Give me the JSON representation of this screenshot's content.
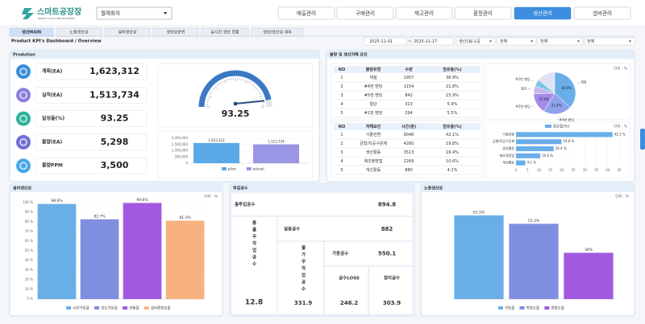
{
  "header": {
    "logo": "스마트공장장",
    "logo_sub": "SMART CLOUD SME PLATFORM",
    "meeting": "월례회의",
    "nav": [
      "매출관리",
      "구매관리",
      "재고관리",
      "품질관리",
      "생산관리",
      "설비관리"
    ]
  },
  "tabs": [
    "생산MAIN",
    "노동생산성",
    "설비생산성",
    "생산성순위",
    "실시간 생산 현황",
    "생산/생산성 세부"
  ],
  "breadcrumb": "Product KPI's Dashboard / Overview",
  "filters": {
    "date_from": "2025-11-01",
    "separator": "~",
    "date_to": "2025-11-17",
    "line": "생산1팀-1공",
    "process": "전체",
    "item": "전체",
    "shift": "전체"
  },
  "production": {
    "title": "Prodution",
    "kpis": [
      {
        "label": "계획(EA)",
        "value": "1,623,312"
      },
      {
        "label": "실적(EA)",
        "value": "1,513,734"
      },
      {
        "label": "달성율(%)",
        "value": "93.25"
      },
      {
        "label": "불량(EA)",
        "value": "5,298"
      },
      {
        "label": "불량PPM",
        "value": "3,500"
      }
    ]
  },
  "defects": {
    "title": "불량 및 생산저해 요인",
    "defect_table": {
      "columns": [
        "NO",
        "불량유형",
        "수량",
        "점유율(%)"
      ],
      "rows": [
        [
          "1",
          "재질",
          "1957",
          "36.9%"
        ],
        [
          "2",
          "#4번 밴딩",
          "1154",
          "21.8%"
        ],
        [
          "3",
          "#5번 밴딩",
          "842",
          "15.9%"
        ],
        [
          "4",
          "절단",
          "313",
          "5.9%"
        ],
        [
          "5",
          "#1번 밴딩",
          "294",
          "5.5%"
        ]
      ]
    },
    "cause_table": {
      "columns": [
        "NO",
        "저해요인",
        "시간(분)",
        "점유율(%)"
      ],
      "rows": [
        [
          "1",
          "기종전환",
          "9046",
          "42.1%"
        ],
        [
          "2",
          "금형/치공구문제",
          "4260",
          "19.8%"
        ],
        [
          "3",
          "생산활동",
          "3513",
          "16.4%"
        ],
        [
          "4",
          "제조정방법",
          "2269",
          "10.6%"
        ],
        [
          "5",
          "개선활동",
          "880",
          "4.1%"
        ]
      ]
    }
  },
  "manhours": {
    "title": "투입공수",
    "total_label": "총투입공수",
    "total": "894.8",
    "idle_label": "통률무작업공수",
    "idle": "12.8",
    "actual_label": "실동공수",
    "actual": "882",
    "unavoidable_label": "불가무작업공수",
    "unavoidable": "331.9",
    "operating_label": "가동공수",
    "operating": "550.1",
    "loss_label": "공수LOSS",
    "loss": "246.2",
    "net_label": "정미공수",
    "net": "303.9"
  },
  "chart_data": [
    {
      "type": "gauge",
      "value": 93.25,
      "range": [
        0,
        100
      ],
      "color": "#3b78c4"
    },
    {
      "type": "bar",
      "series": [
        {
          "name": "plan",
          "color": "#5aa9e6",
          "values": [
            1623312
          ],
          "value_labels": [
            "1,623,312"
          ]
        },
        {
          "name": "actual",
          "color": "#9b95e6",
          "values": [
            1513734
          ],
          "value_labels": [
            "1,513,734"
          ]
        }
      ],
      "ylim": [
        0,
        2000000
      ],
      "yticks": [
        0,
        {
          "value": 500000,
          "label": "500,000"
        },
        {
          "value": 1000000,
          "label": "1,000,000"
        },
        {
          "value": 1500000,
          "label": "1,500,000"
        },
        {
          "value": 2000000,
          "label": "2,000,000"
        }
      ],
      "grid": true
    },
    {
      "type": "pie",
      "unit": "단위 : %",
      "categories": [
        "재질",
        "#4번 밴딩",
        "#5번 밴딩",
        "절단",
        "#1번 밴딩"
      ],
      "values": [
        36.9,
        21.8,
        15.9,
        5.9,
        5.5
      ],
      "value_labels": [
        "36.9%",
        "21.8%",
        "15.9%",
        null,
        null
      ],
      "colors": [
        "#6aaee8",
        "#8fa3ec",
        "#a58ae6",
        "#c9b6f0",
        "#7fc6e8"
      ]
    },
    {
      "type": "hbar",
      "unit": "단위 : %",
      "legend": "점유율(%)",
      "categories": [
        "기종전환",
        "금형/치공구문제",
        "생산활동",
        "제조정방법",
        "개선활동"
      ],
      "values": [
        42.1,
        19.8,
        16.4,
        10.6,
        4.1
      ],
      "value_labels": [
        "42.1 %",
        "19.8 %",
        "16.4 %",
        "10.6 %",
        "4.1 %"
      ],
      "color": "#6aaee8",
      "xlim": [
        0,
        45
      ],
      "xticks": [
        0,
        5,
        10,
        15,
        20,
        25,
        30,
        35,
        40,
        45
      ]
    },
    {
      "type": "bar",
      "title": "설비생산성",
      "unit": "단위 : %",
      "categories": [
        "시간가동율",
        "성능가동율",
        "양품율",
        "설비종합효율"
      ],
      "values": [
        98.6,
        82.7,
        99.6,
        81.3
      ],
      "value_labels": [
        "98.6%",
        "82.7%",
        "99.6%",
        "81.3%"
      ],
      "colors": [
        "#6aaee8",
        "#7f8fe0",
        "#a259e0",
        "#f7b27f"
      ],
      "ylim": [
        0,
        100
      ],
      "yticks": [
        {
          "value": 0,
          "label": "0 %"
        },
        {
          "value": 10,
          "label": "10 %"
        },
        {
          "value": 20,
          "label": "20 %"
        },
        {
          "value": 30,
          "label": "30 %"
        },
        {
          "value": 40,
          "label": "40 %"
        },
        {
          "value": 50,
          "label": "50 %"
        },
        {
          "value": 60,
          "label": "60 %"
        },
        {
          "value": 70,
          "label": "70 %"
        },
        {
          "value": 80,
          "label": "80 %"
        },
        {
          "value": 90,
          "label": "90 %"
        },
        {
          "value": 100,
          "label": "100 %"
        }
      ],
      "grid": true
    },
    {
      "type": "bar",
      "title": "노동생산성",
      "unit": "단위 : %",
      "categories": [
        "가동율",
        "작업능율",
        "종합능율"
      ],
      "values": [
        61.5,
        55.3,
        34
      ],
      "value_labels": [
        "61.5%",
        "55.3%",
        "34%"
      ],
      "colors": [
        "#6aaee8",
        "#7f8fe0",
        "#a259e0"
      ],
      "ylim": [
        0,
        75
      ]
    }
  ]
}
